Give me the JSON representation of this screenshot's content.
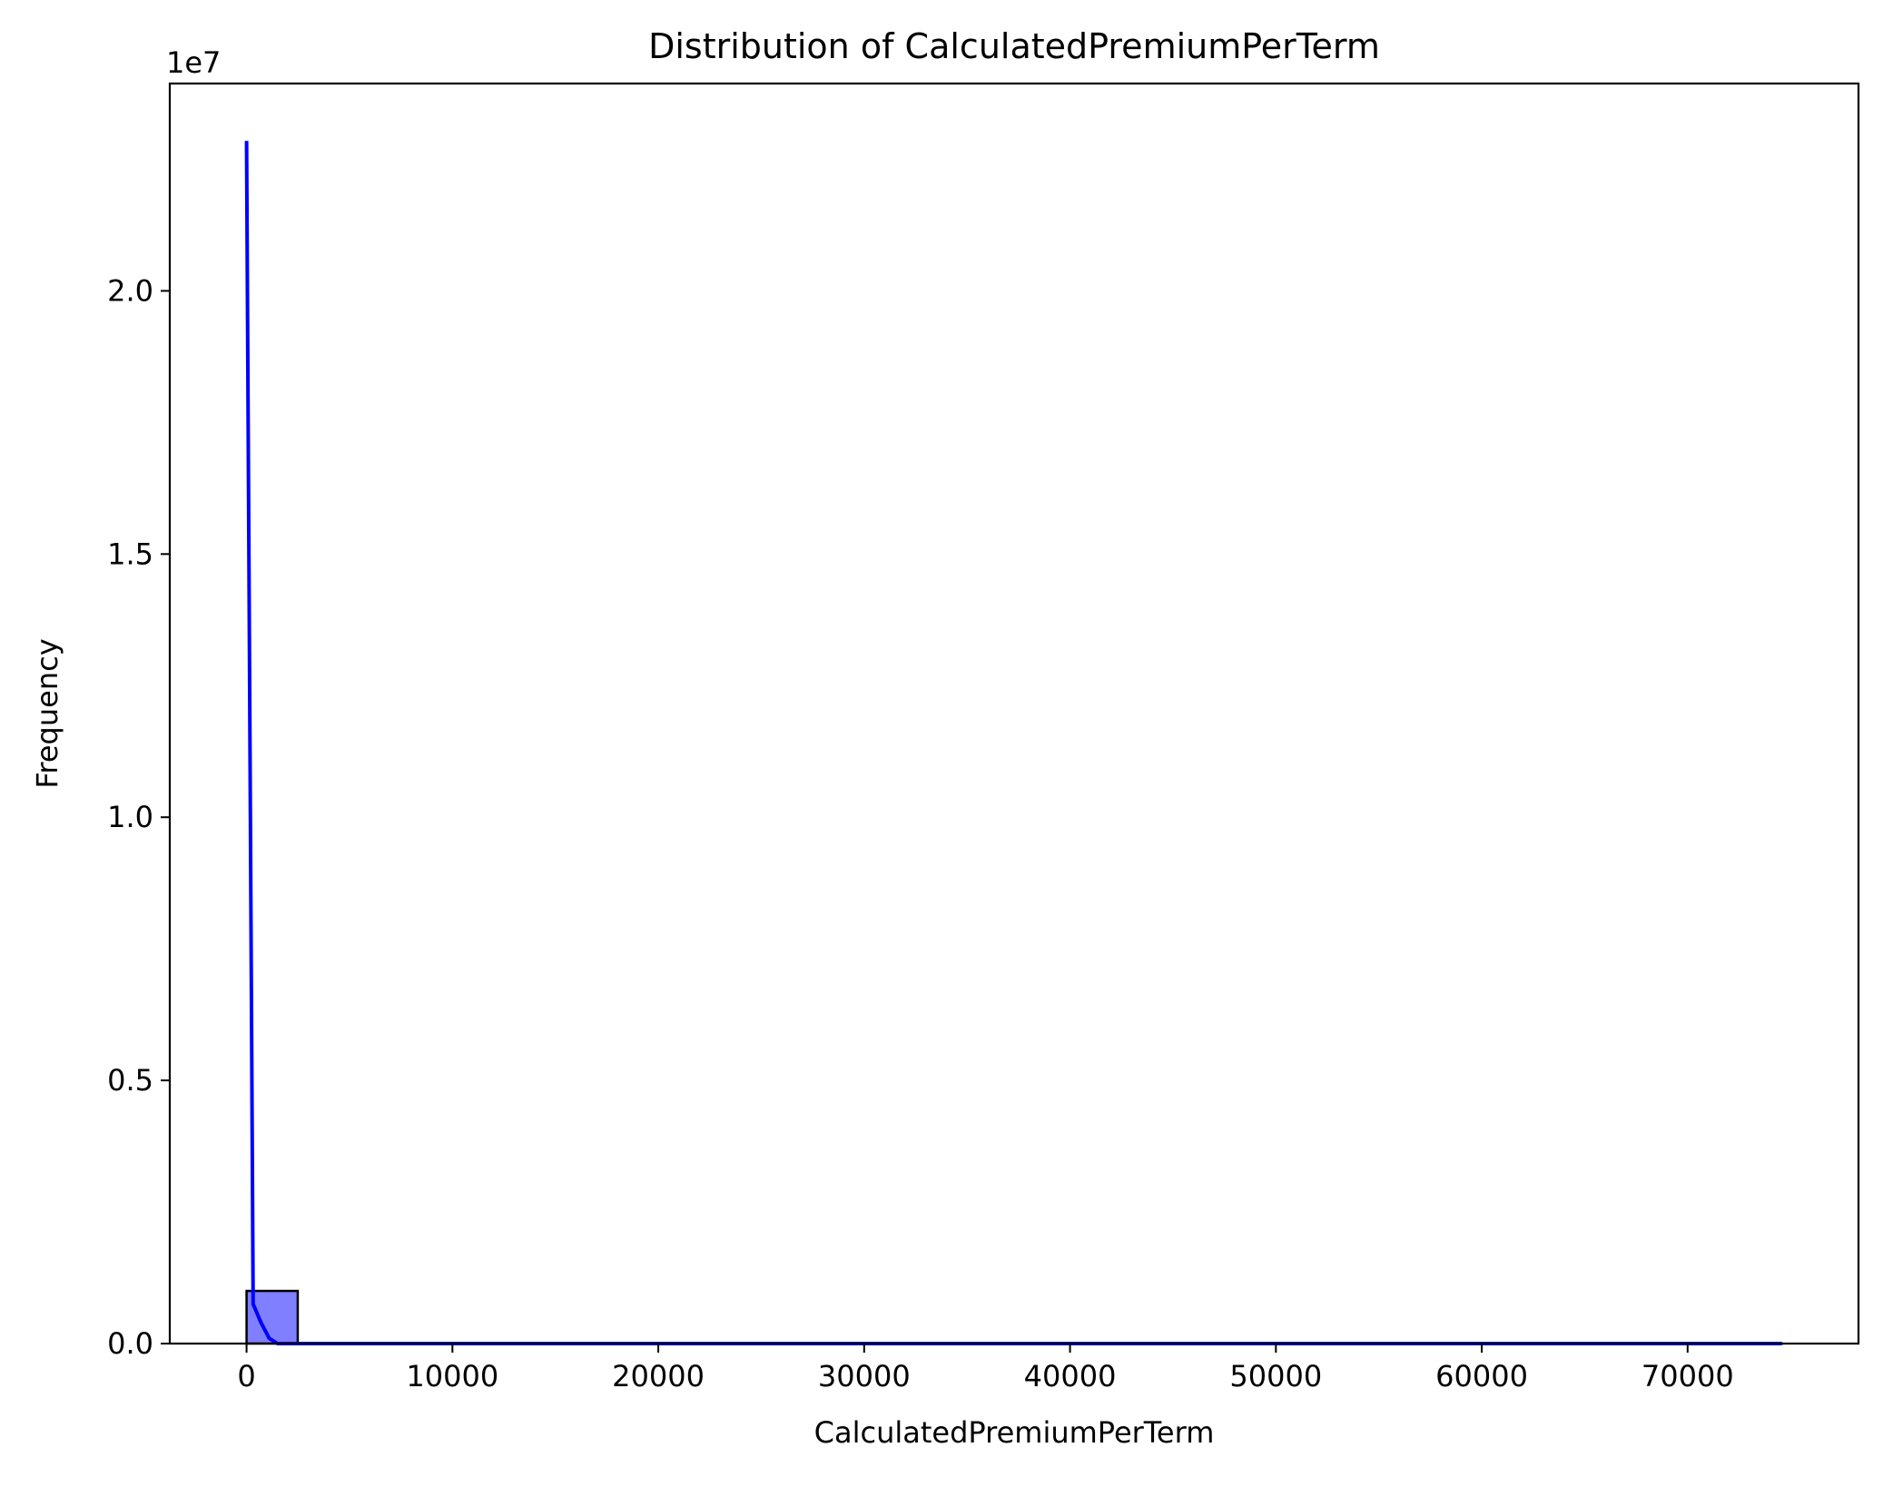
{
  "chart_data": {
    "type": "bar",
    "title": "Distribution of CalculatedPremiumPerTerm",
    "xlabel": "CalculatedPremiumPerTerm",
    "ylabel": "Frequency",
    "y_offset_label": "1e7",
    "xlim": [
      -3730,
      78300
    ],
    "ylim": [
      0,
      23940000
    ],
    "x_ticks": [
      0,
      10000,
      20000,
      30000,
      40000,
      50000,
      60000,
      70000
    ],
    "x_tick_labels": [
      "0",
      "10000",
      "20000",
      "30000",
      "40000",
      "50000",
      "60000",
      "70000"
    ],
    "y_ticks": [
      0,
      5000000,
      10000000,
      15000000,
      20000000
    ],
    "y_tick_labels": [
      "0.0",
      "0.5",
      "1.0",
      "1.5",
      "2.0"
    ],
    "bins": {
      "start": 0,
      "width": 2486,
      "counts": [
        1000000,
        0,
        0,
        0,
        0,
        0,
        0,
        0,
        0,
        0,
        0,
        0,
        0,
        0,
        0,
        0,
        0,
        0,
        0,
        0,
        0,
        0,
        0,
        0,
        0,
        0,
        0,
        0,
        0,
        30
      ]
    },
    "bar_fill": "#7f7fff",
    "bar_edge": "#000000",
    "kde_color": "#0000ff",
    "kde": {
      "x": [
        0,
        320,
        700,
        1100,
        1500,
        2500,
        5000,
        10000,
        20000,
        40000,
        60000,
        74580
      ],
      "y": [
        22850000,
        750000,
        400000,
        100000,
        0,
        0,
        0,
        0,
        0,
        0,
        0,
        0
      ]
    },
    "grid": false,
    "legend": "none"
  }
}
